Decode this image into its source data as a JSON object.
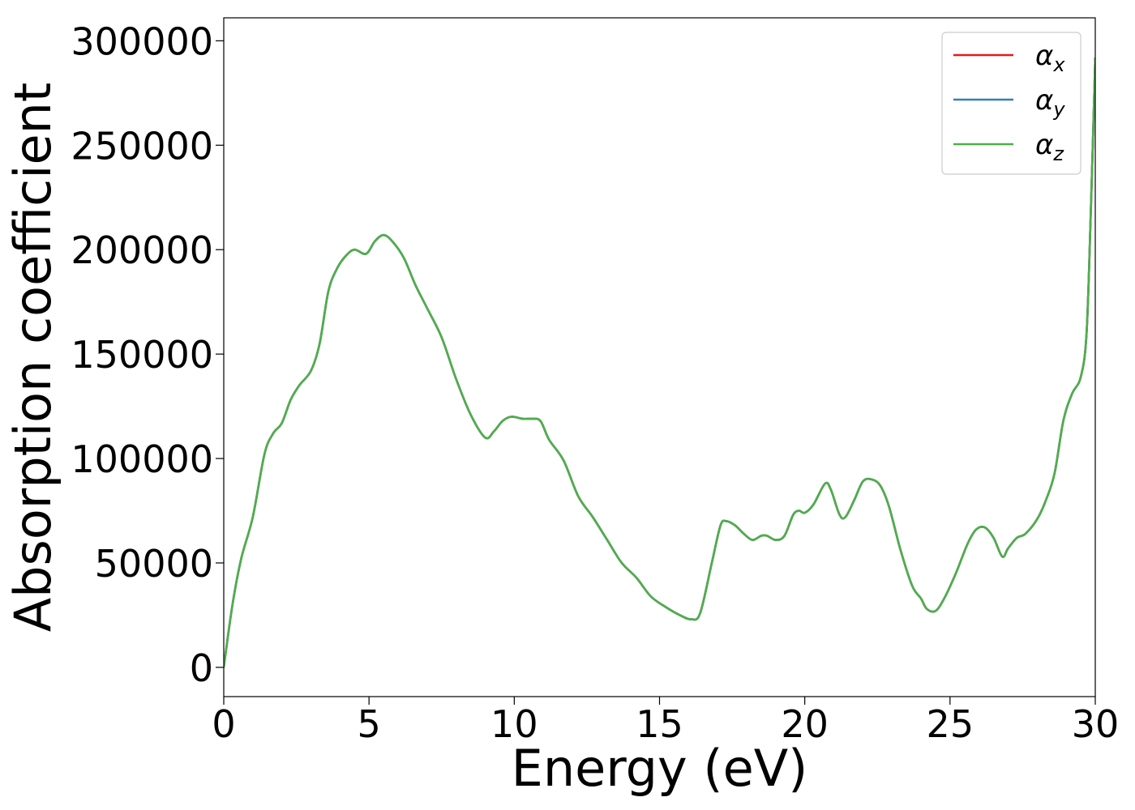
{
  "chart_data": {
    "type": "line",
    "title": "",
    "xlabel": "Energy (eV)",
    "ylabel": "Absorption coefficient",
    "xlim": [
      0,
      30
    ],
    "ylim": [
      -14000,
      311000
    ],
    "xticks": [
      0,
      5,
      10,
      15,
      20,
      25,
      30
    ],
    "yticks": [
      0,
      50000,
      100000,
      150000,
      200000,
      250000,
      300000
    ],
    "grid": false,
    "legend_position": "top-right",
    "x": [
      0,
      0.3,
      0.6,
      1.0,
      1.4,
      1.7,
      2.0,
      2.3,
      2.6,
      3.0,
      3.3,
      3.6,
      3.9,
      4.2,
      4.5,
      4.9,
      5.2,
      5.5,
      5.8,
      6.2,
      6.6,
      7.0,
      7.5,
      8.0,
      8.5,
      9.0,
      9.3,
      9.6,
      9.9,
      10.3,
      10.6,
      10.9,
      11.2,
      11.7,
      12.2,
      12.7,
      13.2,
      13.7,
      14.2,
      14.7,
      15.2,
      15.7,
      16.1,
      16.4,
      16.8,
      17.1,
      17.3,
      17.6,
      17.9,
      18.2,
      18.5,
      18.7,
      19.0,
      19.3,
      19.6,
      19.8,
      20.0,
      20.3,
      20.7,
      20.9,
      21.2,
      21.4,
      21.7,
      22.0,
      22.3,
      22.6,
      22.9,
      23.3,
      23.7,
      24.0,
      24.2,
      24.5,
      24.8,
      25.2,
      25.6,
      25.9,
      26.2,
      26.5,
      26.8,
      27.0,
      27.3,
      27.6,
      28.0,
      28.3,
      28.6,
      28.9,
      29.2,
      29.5,
      29.7,
      29.85,
      30.0
    ],
    "series": [
      {
        "name": "α_x",
        "color": "#e41a1c",
        "y": [
          0,
          30000,
          52000,
          72000,
          102000,
          112000,
          117000,
          128000,
          135000,
          142000,
          155000,
          180000,
          191000,
          197000,
          200000,
          198000,
          204000,
          207000,
          204000,
          196000,
          183000,
          172000,
          158000,
          138000,
          121000,
          110000,
          113000,
          118000,
          120000,
          119000,
          119000,
          118000,
          109000,
          99000,
          82000,
          72000,
          61000,
          50000,
          43000,
          34000,
          29000,
          25000,
          23000,
          26000,
          50000,
          68000,
          70000,
          68000,
          64000,
          61000,
          63000,
          63000,
          61000,
          63000,
          73000,
          75000,
          74000,
          78000,
          88000,
          85000,
          73000,
          72000,
          80000,
          89000,
          90000,
          87000,
          77000,
          56000,
          39000,
          33000,
          28000,
          27000,
          33000,
          45000,
          59000,
          66000,
          67000,
          62000,
          53000,
          57000,
          62000,
          64000,
          71000,
          80000,
          93000,
          118000,
          131000,
          139000,
          160000,
          220000,
          292000
        ]
      },
      {
        "name": "α_y",
        "color": "#377eb8",
        "y": [
          0,
          30000,
          52000,
          72000,
          102000,
          112000,
          117000,
          128000,
          135000,
          142000,
          155000,
          180000,
          191000,
          197000,
          200000,
          198000,
          204000,
          207000,
          204000,
          196000,
          183000,
          172000,
          158000,
          138000,
          121000,
          110000,
          113000,
          118000,
          120000,
          119000,
          119000,
          118000,
          109000,
          99000,
          82000,
          72000,
          61000,
          50000,
          43000,
          34000,
          29000,
          25000,
          23000,
          26000,
          50000,
          68000,
          70000,
          68000,
          64000,
          61000,
          63000,
          63000,
          61000,
          63000,
          73000,
          75000,
          74000,
          78000,
          88000,
          85000,
          73000,
          72000,
          80000,
          89000,
          90000,
          87000,
          77000,
          56000,
          39000,
          33000,
          28000,
          27000,
          33000,
          45000,
          59000,
          66000,
          67000,
          62000,
          53000,
          57000,
          62000,
          64000,
          71000,
          80000,
          93000,
          118000,
          131000,
          139000,
          160000,
          220000,
          292000
        ]
      },
      {
        "name": "α_z",
        "color": "#4daf4a",
        "y": [
          0,
          30000,
          52000,
          72000,
          102000,
          112000,
          117000,
          128000,
          135000,
          142000,
          155000,
          180000,
          191000,
          197000,
          200000,
          198000,
          204000,
          207000,
          204000,
          196000,
          183000,
          172000,
          158000,
          138000,
          121000,
          110000,
          113000,
          118000,
          120000,
          119000,
          119000,
          118000,
          109000,
          99000,
          82000,
          72000,
          61000,
          50000,
          43000,
          34000,
          29000,
          25000,
          23000,
          26000,
          50000,
          68000,
          70000,
          68000,
          64000,
          61000,
          63000,
          63000,
          61000,
          63000,
          73000,
          75000,
          74000,
          78000,
          88000,
          85000,
          73000,
          72000,
          80000,
          89000,
          90000,
          87000,
          77000,
          56000,
          39000,
          33000,
          28000,
          27000,
          33000,
          45000,
          59000,
          66000,
          67000,
          62000,
          53000,
          57000,
          62000,
          64000,
          71000,
          80000,
          93000,
          118000,
          131000,
          139000,
          160000,
          220000,
          292000
        ]
      }
    ],
    "legend": [
      {
        "symbol": "α",
        "subscript": "x",
        "color": "#e41a1c"
      },
      {
        "symbol": "α",
        "subscript": "y",
        "color": "#377eb8"
      },
      {
        "symbol": "α",
        "subscript": "z",
        "color": "#4daf4a"
      }
    ]
  }
}
